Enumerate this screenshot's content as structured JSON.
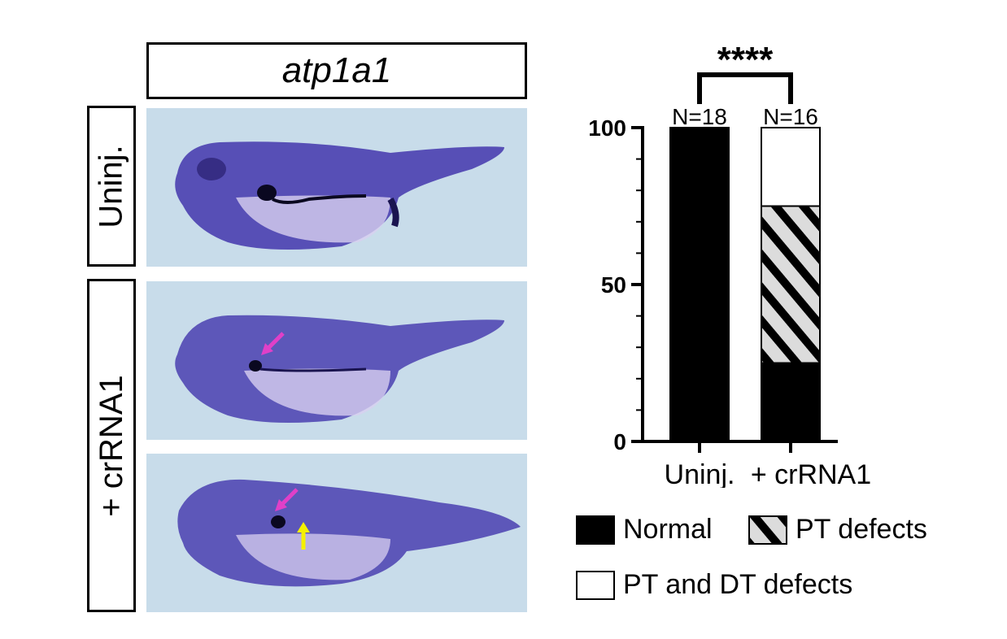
{
  "figure": {
    "gene": "atp1a1",
    "rows": [
      {
        "label": "Uninj.",
        "panels": 1
      },
      {
        "label": "+ crRNA1",
        "panels": 2
      }
    ],
    "arrow_colors": {
      "magenta": "#e040c8",
      "yellow": "#f5f000"
    },
    "embryo_color": "#4a3fb0",
    "background_color": "#c8dcea"
  },
  "chart_data": {
    "type": "bar",
    "stacked": true,
    "categories": [
      "Uninj.",
      "+ crRNA1"
    ],
    "series": [
      {
        "name": "Normal",
        "values": [
          100,
          25
        ],
        "fill": "#000000"
      },
      {
        "name": "PT defects",
        "values": [
          0,
          50
        ],
        "fill": "hatch"
      },
      {
        "name": "PT and DT defects",
        "values": [
          0,
          25
        ],
        "fill": "#ffffff"
      }
    ],
    "ylim": [
      0,
      100
    ],
    "yticks": [
      "0",
      "50",
      "100"
    ],
    "n_labels": [
      "N=18",
      "N=16"
    ],
    "significance": "****",
    "legend_position": "bottom"
  }
}
